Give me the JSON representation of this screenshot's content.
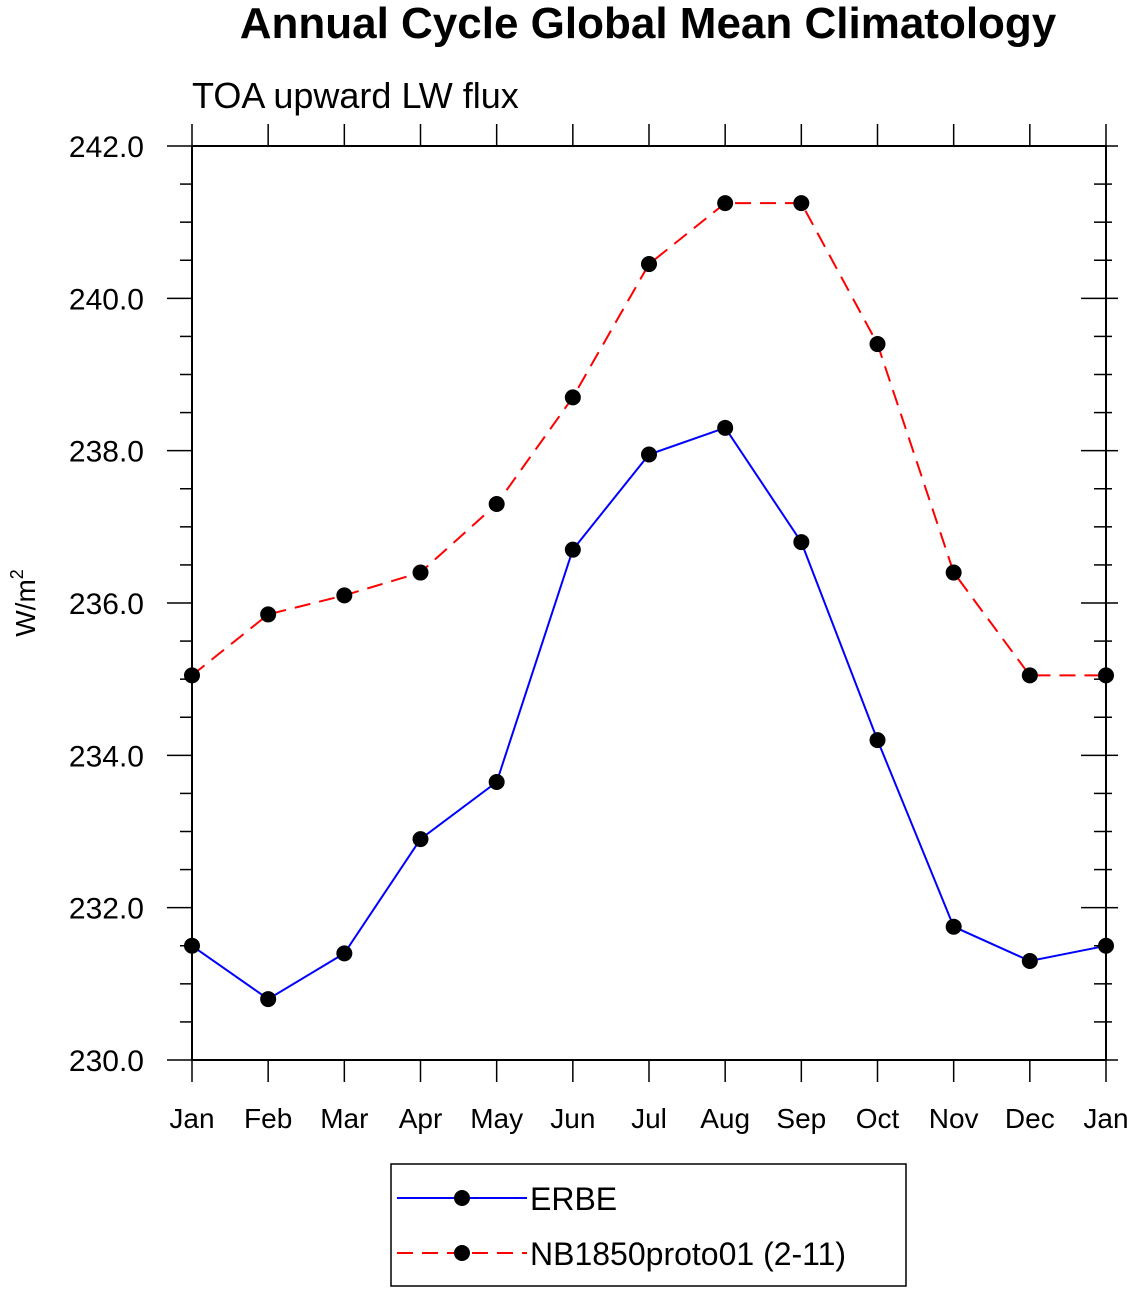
{
  "chart_data": {
    "type": "line",
    "title": "Annual Cycle Global Mean Climatology",
    "subtitle": "TOA upward LW flux",
    "xlabel": "",
    "ylabel": "W/m",
    "ylabel_superscript": "2",
    "categories": [
      "Jan",
      "Feb",
      "Mar",
      "Apr",
      "May",
      "Jun",
      "Jul",
      "Aug",
      "Sep",
      "Oct",
      "Nov",
      "Dec",
      "Jan"
    ],
    "ylim": [
      230.0,
      242.0
    ],
    "yticks": [
      230.0,
      232.0,
      234.0,
      236.0,
      238.0,
      240.0,
      242.0
    ],
    "ytick_labels": [
      "230.0",
      "232.0",
      "234.0",
      "236.0",
      "238.0",
      "240.0",
      "242.0"
    ],
    "series": [
      {
        "name": "ERBE",
        "color": "#0000ff",
        "dash": "solid",
        "values": [
          231.5,
          230.8,
          231.4,
          232.9,
          233.65,
          236.7,
          237.95,
          238.3,
          236.8,
          234.2,
          231.75,
          231.3,
          231.5
        ]
      },
      {
        "name": "NB1850proto01 (2-11)",
        "color": "#ff0000",
        "dash": "dashed",
        "values": [
          235.05,
          235.85,
          236.1,
          236.4,
          237.3,
          238.7,
          240.45,
          241.25,
          241.25,
          239.4,
          236.4,
          235.05,
          235.05
        ]
      }
    ],
    "legend": {
      "position": "bottom",
      "entries": [
        "ERBE",
        "NB1850proto01 (2-11)"
      ]
    }
  }
}
